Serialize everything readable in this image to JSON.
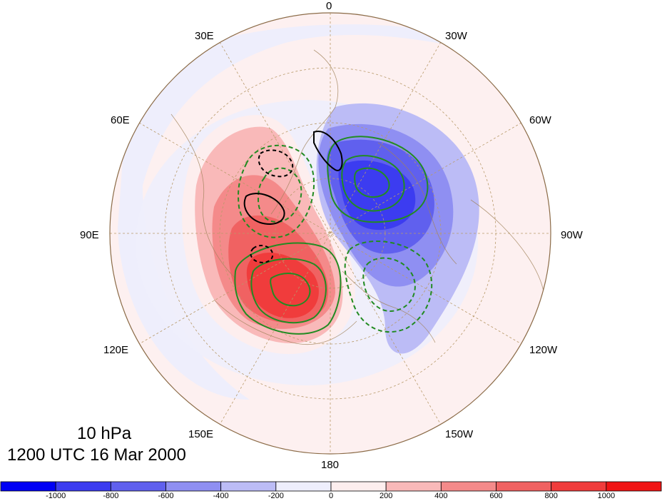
{
  "title": {
    "level": "10 hPa",
    "time": "1200 UTC 16 Mar 2000"
  },
  "longitude_labels": {
    "lon_0": "0",
    "lon_30e": "30E",
    "lon_30w": "30W",
    "lon_60e": "60E",
    "lon_60w": "60W",
    "lon_90e": "90E",
    "lon_90w": "90W",
    "lon_120e": "120E",
    "lon_120w": "120W",
    "lon_150e": "150E",
    "lon_150w": "150W",
    "lon_180": "180"
  },
  "colorbar": {
    "tick_labels": [
      "-1000",
      "-800",
      "-600",
      "-400",
      "-200",
      "0",
      "200",
      "400",
      "600",
      "800",
      "1000"
    ],
    "colors": [
      "#0000f5",
      "#3c3cf0",
      "#6060ee",
      "#8f8ff2",
      "#bcbcf6",
      "#eeeefc",
      "#fdeeee",
      "#f9b9b9",
      "#f48a8a",
      "#f06262",
      "#f03c3c",
      "#f01414"
    ]
  },
  "field": {
    "positive_center_lon": "105E",
    "negative_center_lon": "75W",
    "contour_colors": {
      "positive": "#228b22",
      "negative_dashed": "#228b22",
      "secondary": "#000000"
    }
  }
}
